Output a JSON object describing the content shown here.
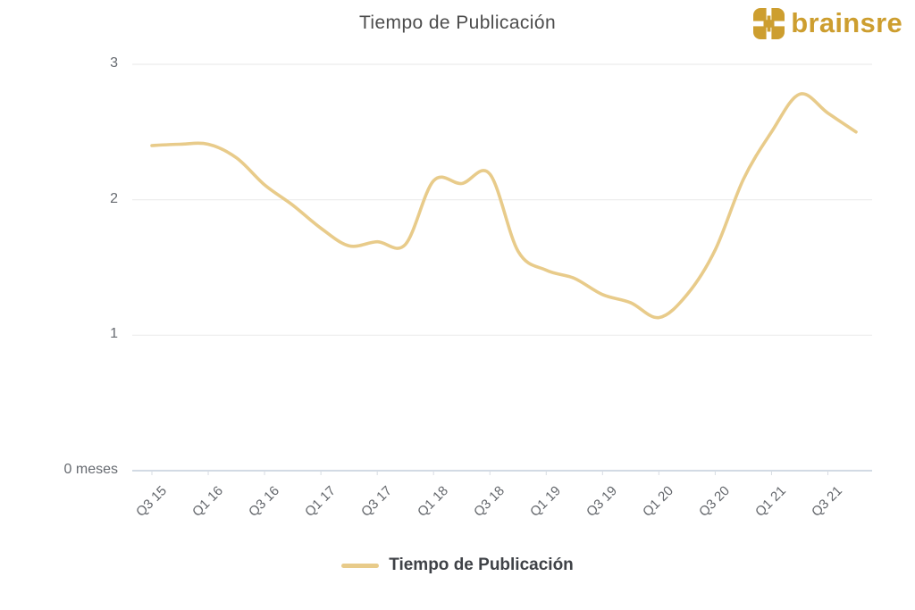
{
  "page": {
    "title": "Tiempo de Publicación"
  },
  "brand": {
    "name": "brainsre"
  },
  "colors": {
    "series": "#e8cb8a",
    "brand_gold": "#cd9e2f",
    "gridline": "#ececec",
    "axis_line": "#c3cedb",
    "tick_mark": "#d7dce3"
  },
  "chart_data": {
    "type": "line",
    "title": "Tiempo de Publicación",
    "x": [
      "Q3 15",
      "Q4 15",
      "Q1 16",
      "Q2 16",
      "Q3 16",
      "Q4 16",
      "Q1 17",
      "Q2 17",
      "Q3 17",
      "Q4 17",
      "Q1 18",
      "Q2 18",
      "Q3 18",
      "Q4 18",
      "Q1 19",
      "Q2 19",
      "Q3 19",
      "Q4 19",
      "Q1 20",
      "Q2 20",
      "Q3 20",
      "Q4 20",
      "Q1 21",
      "Q2 21",
      "Q3 21",
      "Q4 21"
    ],
    "values": [
      2.4,
      2.41,
      2.41,
      2.31,
      2.11,
      1.96,
      1.79,
      1.66,
      1.69,
      1.67,
      2.14,
      2.12,
      2.19,
      1.62,
      1.48,
      1.42,
      1.3,
      1.24,
      1.13,
      1.3,
      1.63,
      2.15,
      2.5,
      2.78,
      2.64,
      2.5
    ],
    "x_tick_labels": [
      "Q3 15",
      "Q1 16",
      "Q3 16",
      "Q1 17",
      "Q3 17",
      "Q1 18",
      "Q3 18",
      "Q1 19",
      "Q3 19",
      "Q1 20",
      "Q3 20",
      "Q1 21",
      "Q3 21"
    ],
    "x_tick_every": 2,
    "y_ticks": [
      {
        "value": 0,
        "label": "0 meses"
      },
      {
        "value": 1,
        "label": "1"
      },
      {
        "value": 2,
        "label": "2"
      },
      {
        "value": 3,
        "label": "3"
      }
    ],
    "ylim": [
      0,
      3
    ],
    "grid": true,
    "smooth": true,
    "legend_position": "bottom",
    "series_name": "Tiempo de Publicación",
    "line_color": "#e8cb8a"
  }
}
